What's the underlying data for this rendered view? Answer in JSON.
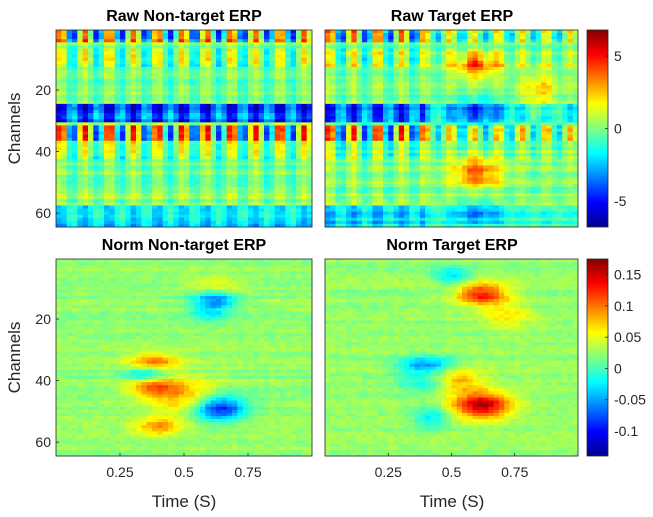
{
  "chart_data": [
    {
      "type": "heatmap",
      "title": "Raw Non-target ERP",
      "ylabel": "Channels",
      "xlabel": "",
      "x_range": [
        0,
        1
      ],
      "y_range": [
        1,
        64
      ],
      "y_ticks": [
        20,
        40,
        60
      ],
      "x_ticks": [],
      "colormap": "jet"
    },
    {
      "type": "heatmap",
      "title": "Raw Target ERP",
      "ylabel": "",
      "xlabel": "",
      "x_range": [
        0,
        1
      ],
      "y_range": [
        1,
        64
      ],
      "y_ticks": [],
      "x_ticks": [],
      "colormap": "jet",
      "colorbar": {
        "range": [
          -6.8,
          6.8
        ],
        "ticks": [
          5,
          0,
          -5
        ],
        "tick_labels": [
          "5",
          "0",
          "-5"
        ]
      }
    },
    {
      "type": "heatmap",
      "title": "Norm Non-target ERP",
      "ylabel": "Channels",
      "xlabel": "Time (S)",
      "x_range": [
        0,
        1
      ],
      "y_range": [
        1,
        64
      ],
      "y_ticks": [
        20,
        40,
        60
      ],
      "x_ticks": [
        0.25,
        0.5,
        0.75
      ],
      "x_tick_labels": [
        "0.25",
        "0.5",
        "0.75"
      ],
      "colormap": "jet"
    },
    {
      "type": "heatmap",
      "title": "Norm Target ERP",
      "ylabel": "",
      "xlabel": "Time (S)",
      "x_range": [
        0,
        1
      ],
      "y_range": [
        1,
        64
      ],
      "y_ticks": [],
      "x_ticks": [
        0.25,
        0.5,
        0.75
      ],
      "x_tick_labels": [
        "0.25",
        "0.5",
        "0.75"
      ],
      "colormap": "jet",
      "colorbar": {
        "range": [
          -0.14,
          0.175
        ],
        "ticks": [
          0.15,
          0.1,
          0.05,
          0,
          -0.05,
          -0.1
        ],
        "tick_labels": [
          "0.15",
          "0.1",
          "0.05",
          "0",
          "-0.05",
          "-0.1"
        ]
      }
    }
  ]
}
